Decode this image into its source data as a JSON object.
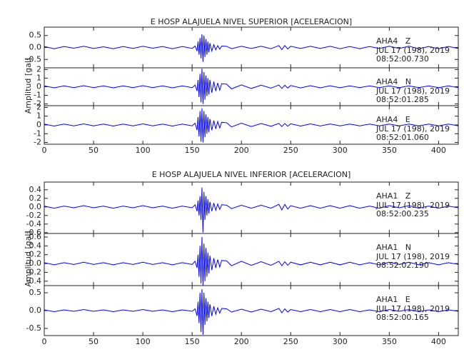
{
  "chart_data": [
    {
      "type": "seismogram",
      "title": "E HOSP ALAJUELA NIVEL SUPERIOR [ACELERACION]",
      "y_label": "Amplitud [gal]",
      "xlim": [
        0,
        420
      ],
      "xticks": [
        0,
        50,
        100,
        150,
        200,
        250,
        300,
        350,
        400
      ],
      "color": "#0000ff",
      "x": [
        0,
        10,
        20,
        30,
        40,
        50,
        60,
        70,
        80,
        90,
        100,
        110,
        120,
        130,
        140,
        150,
        153,
        155,
        156,
        157,
        158,
        159,
        160,
        161,
        162,
        163,
        164,
        165,
        166,
        167,
        168,
        170,
        172,
        174,
        176,
        178,
        180,
        185,
        190,
        200,
        210,
        220,
        230,
        238,
        241,
        244,
        247,
        250,
        260,
        270,
        280,
        290,
        300,
        310,
        320,
        330,
        340,
        350,
        360,
        370,
        380,
        390,
        400,
        410,
        420
      ],
      "panels": [
        {
          "name": "AHA4   Z",
          "date": "JUL 17 (198), 2019",
          "time": "08:52:00.730",
          "ylim": [
            -0.85,
            0.85
          ],
          "yticks": [
            0.5,
            {
              "value": 0,
              "label": "0.0"
            },
            -0.5
          ],
          "values": [
            0.04,
            -0.05,
            0.04,
            -0.03,
            0.05,
            -0.04,
            0.03,
            -0.05,
            0.04,
            -0.04,
            0.05,
            -0.03,
            0.04,
            -0.05,
            0.04,
            -0.04,
            0.06,
            -0.15,
            0.25,
            -0.3,
            0.4,
            -0.45,
            0.55,
            -0.6,
            0.5,
            -0.4,
            0.35,
            -0.3,
            0.25,
            -0.2,
            0.18,
            -0.15,
            0.12,
            -0.1,
            0.08,
            -0.07,
            0.06,
            0.05,
            -0.05,
            0.05,
            -0.04,
            0.05,
            -0.05,
            0.08,
            -0.09,
            0.08,
            -0.06,
            0.05,
            -0.04,
            0.05,
            -0.04,
            0.05,
            -0.05,
            0.04,
            -0.05,
            0.04,
            -0.04,
            0.05,
            -0.04,
            0.05,
            -0.05,
            0.04,
            -0.05,
            0.04,
            -0.04
          ]
        },
        {
          "name": "AHA4   N",
          "date": "JUL 17 (198), 2019",
          "time": "08:52:01.285",
          "ylim": [
            -2.2,
            2.2
          ],
          "yticks": [
            2,
            1,
            0,
            -1,
            -2
          ],
          "values": [
            0.1,
            -0.12,
            0.1,
            -0.1,
            0.12,
            -0.1,
            0.1,
            -0.12,
            0.1,
            -0.1,
            0.12,
            -0.1,
            0.1,
            -0.12,
            0.1,
            -0.1,
            0.2,
            -0.5,
            0.8,
            -1.2,
            1.5,
            -1.8,
            2.1,
            -2.0,
            1.7,
            -1.5,
            1.3,
            -1.1,
            1.0,
            -0.9,
            0.8,
            -0.7,
            0.6,
            -0.5,
            0.45,
            -0.4,
            0.35,
            0.3,
            -0.25,
            0.22,
            -0.2,
            0.18,
            -0.16,
            0.2,
            -0.2,
            0.18,
            -0.15,
            0.14,
            -0.13,
            0.12,
            -0.12,
            0.11,
            -0.11,
            0.1,
            -0.1,
            0.1,
            -0.1,
            0.1,
            -0.1,
            0.1,
            -0.1,
            0.1,
            -0.1,
            0.1,
            -0.1
          ]
        },
        {
          "name": "AHA4   E",
          "date": "JUL 17 (198), 2019",
          "time": "08:52:01.060",
          "ylim": [
            -2.2,
            2.2
          ],
          "yticks": [
            2,
            1,
            0,
            -1,
            -2
          ],
          "values": [
            0.1,
            -0.12,
            0.1,
            -0.1,
            0.12,
            -0.1,
            0.1,
            -0.12,
            0.1,
            -0.1,
            0.12,
            -0.1,
            0.1,
            -0.12,
            0.1,
            -0.1,
            0.2,
            -0.6,
            0.9,
            -1.3,
            1.6,
            -1.9,
            1.9,
            -2.0,
            1.6,
            -1.4,
            1.2,
            -1.0,
            0.9,
            -0.8,
            0.7,
            -0.6,
            0.5,
            -0.45,
            0.4,
            -0.35,
            0.3,
            0.25,
            -0.22,
            0.2,
            -0.18,
            0.16,
            -0.15,
            0.18,
            -0.18,
            0.16,
            -0.14,
            0.13,
            -0.12,
            0.12,
            -0.11,
            0.11,
            -0.1,
            0.1,
            -0.1,
            0.1,
            -0.1,
            0.1,
            -0.1,
            0.1,
            -0.1,
            0.1,
            -0.1,
            0.1,
            -0.1
          ]
        }
      ]
    },
    {
      "type": "seismogram",
      "title": "E HOSP ALAJUELA NIVEL INFERIOR [ACELERACION]",
      "y_label": "Amplitud [gal]",
      "xlim": [
        0,
        420
      ],
      "xticks": [
        0,
        50,
        100,
        150,
        200,
        250,
        300,
        350,
        400
      ],
      "color": "#0000ff",
      "x": [
        0,
        10,
        20,
        30,
        40,
        50,
        60,
        70,
        80,
        90,
        100,
        110,
        120,
        130,
        140,
        150,
        153,
        155,
        156,
        157,
        158,
        159,
        160,
        161,
        162,
        163,
        164,
        165,
        166,
        167,
        168,
        170,
        172,
        174,
        176,
        178,
        180,
        185,
        190,
        200,
        210,
        220,
        230,
        238,
        241,
        244,
        247,
        250,
        260,
        270,
        280,
        290,
        300,
        310,
        320,
        330,
        340,
        350,
        360,
        370,
        380,
        390,
        400,
        410,
        420
      ],
      "panels": [
        {
          "name": "AHA1   Z",
          "date": "JUL 17 (198), 2019",
          "time": "08:52:00.235",
          "ylim": [
            -0.62,
            0.58
          ],
          "yticks": [
            0.4,
            0.2,
            {
              "value": 0,
              "label": "0.0"
            },
            -0.2,
            -0.4,
            -0.6
          ],
          "values": [
            0.02,
            -0.03,
            0.02,
            -0.02,
            0.03,
            -0.02,
            0.02,
            -0.03,
            0.02,
            -0.02,
            0.03,
            -0.02,
            0.02,
            -0.03,
            0.02,
            -0.02,
            0.05,
            -0.1,
            0.15,
            -0.2,
            0.25,
            -0.3,
            0.45,
            -0.6,
            0.35,
            -0.3,
            0.25,
            -0.2,
            0.18,
            -0.15,
            0.12,
            -0.1,
            0.09,
            -0.08,
            0.07,
            -0.06,
            0.05,
            0.04,
            -0.04,
            0.04,
            -0.03,
            0.04,
            -0.03,
            0.06,
            -0.07,
            0.06,
            -0.05,
            0.03,
            -0.03,
            0.03,
            -0.03,
            0.03,
            -0.03,
            0.03,
            -0.03,
            0.02,
            -0.03,
            0.03,
            -0.02,
            0.03,
            -0.03,
            0.02,
            -0.03,
            0.02,
            -0.02
          ]
        },
        {
          "name": "AHA1   N",
          "date": "JUL 17 (198), 2019",
          "time": "08:52:02.190",
          "ylim": [
            -0.5,
            0.68
          ],
          "yticks": [
            0.6,
            0.4,
            0.2,
            {
              "value": 0,
              "label": "0.0"
            },
            -0.2,
            -0.4
          ],
          "values": [
            0.02,
            -0.03,
            0.02,
            -0.02,
            0.03,
            -0.02,
            0.02,
            -0.03,
            0.02,
            -0.02,
            0.03,
            -0.02,
            0.02,
            -0.03,
            0.02,
            -0.02,
            0.05,
            -0.1,
            0.2,
            -0.3,
            0.4,
            -0.45,
            0.6,
            -0.5,
            0.45,
            -0.4,
            0.35,
            -0.3,
            0.25,
            -0.22,
            0.18,
            -0.15,
            0.12,
            -0.1,
            0.09,
            -0.08,
            0.07,
            0.06,
            -0.05,
            0.05,
            -0.04,
            0.04,
            -0.04,
            0.05,
            -0.05,
            0.04,
            -0.04,
            0.03,
            -0.03,
            0.03,
            -0.03,
            0.03,
            -0.03,
            0.03,
            -0.03,
            0.02,
            -0.03,
            0.03,
            -0.02,
            0.03,
            -0.03,
            0.02,
            -0.03,
            0.02,
            -0.02
          ]
        },
        {
          "name": "AHA1   E",
          "date": "JUL 17 (198), 2019",
          "time": "08:52:00.165",
          "ylim": [
            -0.7,
            0.7
          ],
          "yticks": [
            0.5,
            {
              "value": 0,
              "label": "0.0"
            },
            -0.5
          ],
          "values": [
            0.02,
            -0.03,
            0.02,
            -0.02,
            0.03,
            -0.02,
            0.02,
            -0.03,
            0.02,
            -0.02,
            0.03,
            -0.02,
            0.02,
            -0.03,
            0.02,
            -0.02,
            0.05,
            -0.15,
            0.25,
            -0.35,
            0.5,
            -0.6,
            0.6,
            -0.68,
            0.5,
            -0.4,
            0.35,
            -0.3,
            0.25,
            -0.2,
            0.18,
            -0.15,
            0.12,
            -0.1,
            0.08,
            -0.07,
            0.06,
            0.05,
            -0.04,
            0.04,
            -0.04,
            0.04,
            -0.03,
            0.06,
            -0.06,
            0.05,
            -0.04,
            0.03,
            -0.03,
            0.03,
            -0.03,
            0.03,
            -0.03,
            0.03,
            -0.03,
            0.02,
            -0.03,
            0.03,
            -0.02,
            0.03,
            -0.03,
            0.02,
            -0.03,
            0.02,
            -0.02
          ]
        }
      ]
    }
  ]
}
